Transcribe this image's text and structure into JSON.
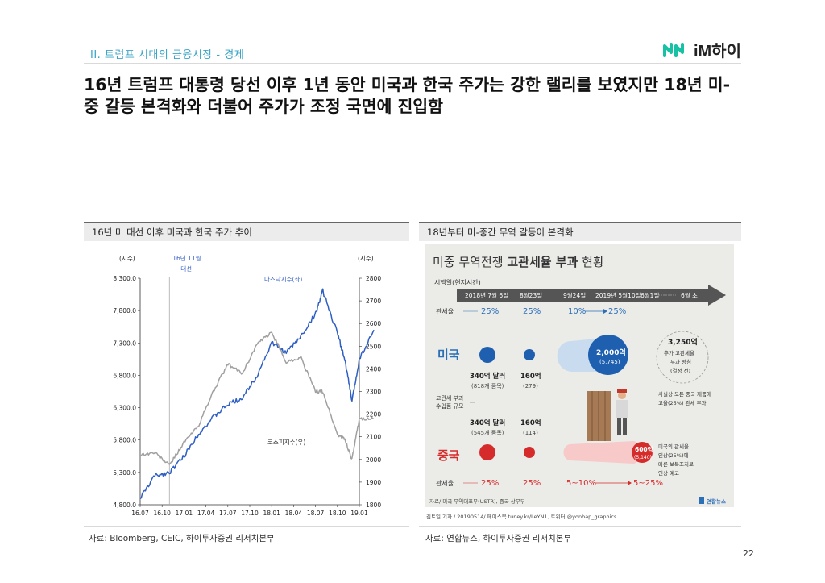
{
  "header": {
    "section": "II. 트럼프 시대의 금융시장 - 경제",
    "brand": "iM하이"
  },
  "headline": "16년 트럼프 대통령 당선 이후 1년 동안 미국과 한국 주가는 강한 랠리를 보였지만 18년 미-중 갈등 본격화와 더불어 주가가 조정 국면에 진입함",
  "left_panel": {
    "title": "16년 미 대선 이후 미국과 한국 주가 추이",
    "source": "자료: Bloomberg, CEIC, 하이투자증권 리서치본부"
  },
  "right_panel": {
    "title": "18년부터 미-중간 무역 갈등이 본격화",
    "source": "자료: 연합뉴스, 하이투자증권 리서치본부"
  },
  "page_number": "22",
  "chart_data": {
    "type": "line",
    "left_unit": "(지수)",
    "right_unit": "(지수)",
    "left_ticks": [
      "8,300.0",
      "7,800.0",
      "7,300.0",
      "6,800.0",
      "6,300.0",
      "5,800.0",
      "5,300.0",
      "4,800.0"
    ],
    "right_ticks": [
      "2800",
      "2700",
      "2600",
      "2500",
      "2400",
      "2300",
      "2200",
      "2100",
      "2000",
      "1900",
      "1800"
    ],
    "x_ticks": [
      "16.07",
      "16.10",
      "17.01",
      "17.04",
      "17.07",
      "17.10",
      "18.01",
      "18.04",
      "18.07",
      "18.10",
      "19.01"
    ],
    "left_range": [
      4800,
      8300
    ],
    "right_range": [
      1800,
      2800
    ],
    "annotation": "16년 11월\n대선",
    "annotation_lines": [
      "16년 11월",
      "대선"
    ],
    "series": [
      {
        "name": "나스닥지수(좌)",
        "axis": "left",
        "color": "#2f5fc4",
        "x": [
          "16.07",
          "16.09",
          "16.11",
          "17.01",
          "17.03",
          "17.05",
          "17.07",
          "17.09",
          "17.11",
          "18.01",
          "18.03",
          "18.05",
          "18.07",
          "18.08",
          "18.10",
          "18.11",
          "18.12",
          "19.01",
          "19.03"
        ],
        "values": [
          4900,
          5250,
          5300,
          5550,
          5900,
          6150,
          6350,
          6450,
          6800,
          7300,
          7150,
          7400,
          7750,
          8100,
          7450,
          7050,
          6400,
          7050,
          7500
        ]
      },
      {
        "name": "코스피지수(우)",
        "axis": "right",
        "color": "#a0a0a0",
        "x": [
          "16.07",
          "16.09",
          "16.11",
          "17.01",
          "17.03",
          "17.05",
          "17.07",
          "17.09",
          "17.11",
          "18.01",
          "18.03",
          "18.05",
          "18.07",
          "18.08",
          "18.10",
          "18.11",
          "18.12",
          "19.01",
          "19.03"
        ],
        "values": [
          2020,
          2030,
          1975,
          2075,
          2150,
          2300,
          2420,
          2380,
          2510,
          2560,
          2430,
          2450,
          2300,
          2300,
          2110,
          2090,
          2000,
          2180,
          2180
        ]
      }
    ]
  },
  "infographic": {
    "title_light": "미중 무역전쟁",
    "title_bold": "고관세율 부과",
    "title_tail": "현황",
    "timeline_label": "시행일(현지시간)",
    "dates": [
      "2018년 7월 6일",
      "8월23일",
      "9월24일",
      "2019년 5월10일",
      "6월1일",
      "6월 초"
    ],
    "us_tariff_label": "관세율",
    "us_rates": [
      "25%",
      "25%",
      "10%",
      "25%"
    ],
    "us_label": "미국",
    "us_amounts": [
      {
        "amount": "340억 달러",
        "count": "(818개 품목)"
      },
      {
        "amount": "160억",
        "count": "(279)"
      },
      {
        "amount": "2,000억",
        "count": "(5,745)"
      }
    ],
    "us_plan": [
      "3,250억",
      "추가 고관세율",
      "부과 방침",
      "(결정 전)"
    ],
    "scale_label": [
      "고관세 부과",
      "수입품 규모"
    ],
    "cn_amounts": [
      {
        "amount": "340억 달러",
        "count": "(545개 품목)"
      },
      {
        "amount": "160억",
        "count": "(114)"
      },
      {
        "amount": "600억",
        "count": "(5,140)"
      }
    ],
    "cn_label": "중국",
    "cn_tariff_label": "관세율",
    "cn_rates": [
      "25%",
      "25%",
      "5~10%",
      "5~25%"
    ],
    "side_note_us": [
      "사실상 모든 중국 제품에",
      "고율(25%) 관세 부과"
    ],
    "side_note_cn": [
      "미국의 관세율",
      "인상(25%)에",
      "따른 보복조치로",
      "인상 예고"
    ],
    "footer_source": "자료/ 미국 무역대표부(USTR), 중국 상무부",
    "footer_credit": "김토일 기자 / 20190514/ 페이스북 tuney.kr/LeYN1, 트위터 @yonhap_graphics",
    "footer_logo": "연합뉴스"
  }
}
